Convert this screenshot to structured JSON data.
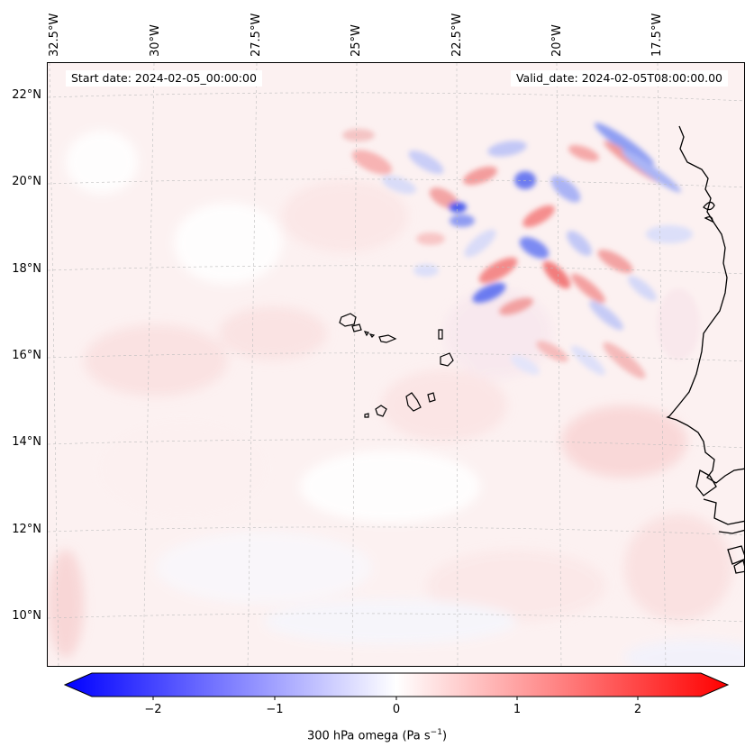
{
  "header": {
    "start_date": "Start date: 2024-02-05_00:00:00",
    "valid_date": "Valid_date: 2024-02-05T08:00:00.00"
  },
  "lon_labels": [
    "32.5°W",
    "30°W",
    "27.5°W",
    "25°W",
    "22.5°W",
    "20°W",
    "17.5°W"
  ],
  "lat_labels": [
    "22°N",
    "20°N",
    "18°N",
    "16°N",
    "14°N",
    "12°N",
    "10°N"
  ],
  "colorbar": {
    "ticks": [
      "−2",
      "−1",
      "0",
      "1",
      "2"
    ],
    "title": "300 hPa omega (Pa s",
    "title_sup": "−1",
    "title_end": ")",
    "min_color": "#0000ff",
    "mid_color": "#ffffff",
    "max_color": "#ff0000"
  }
}
